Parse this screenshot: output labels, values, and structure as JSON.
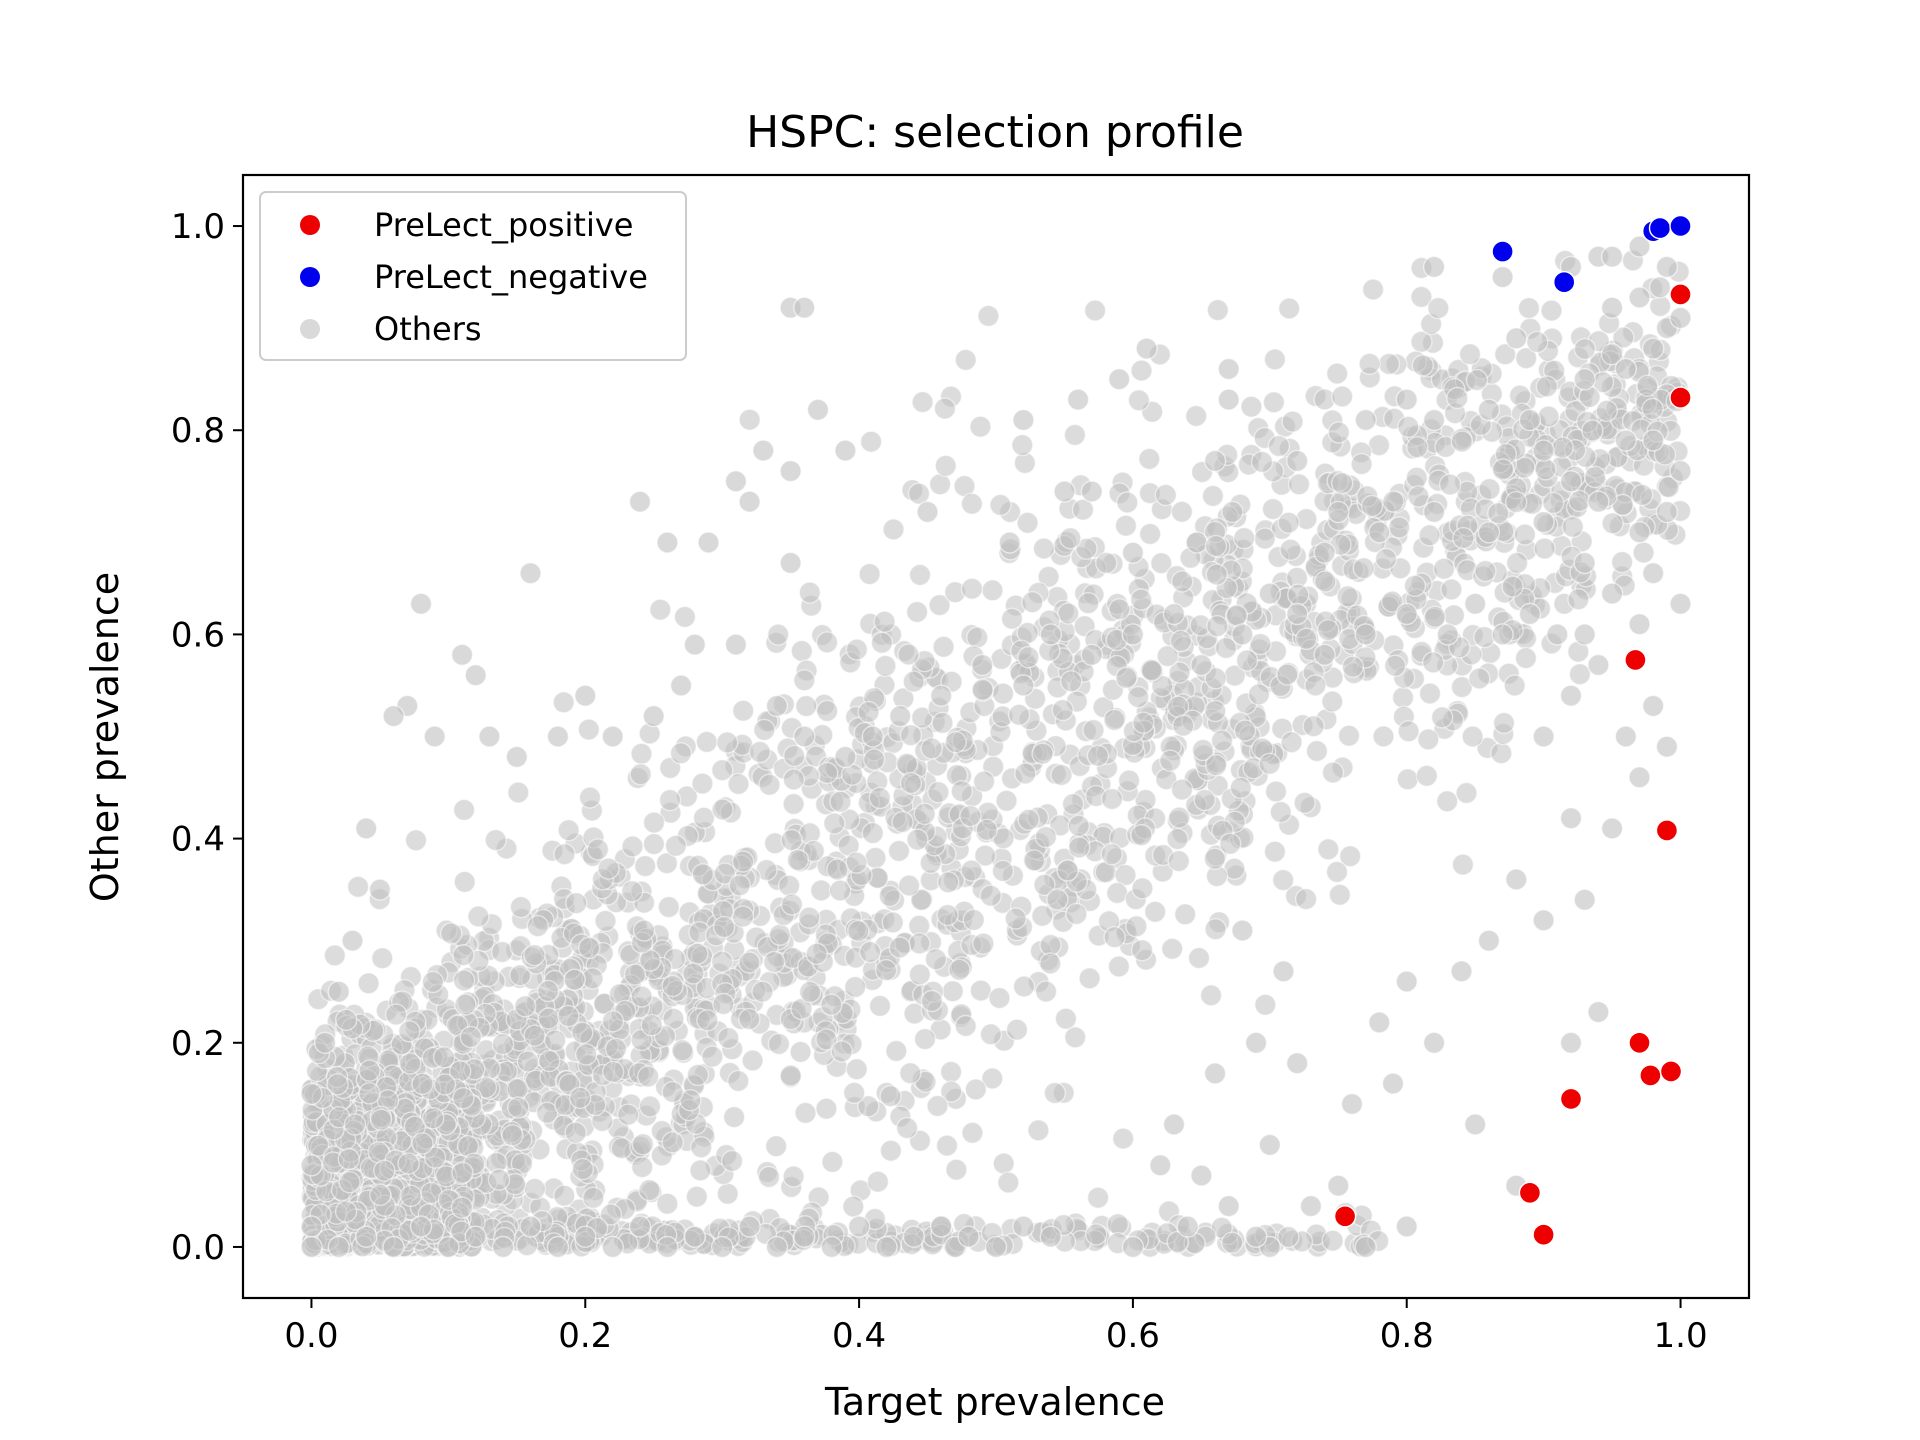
{
  "chart_data": {
    "type": "scatter",
    "title": "HSPC: selection profile",
    "xlabel": "Target prevalence",
    "ylabel": "Other prevalence",
    "xlim": [
      -0.05,
      1.05
    ],
    "ylim": [
      -0.05,
      1.05
    ],
    "xticks": [
      "0.0",
      "0.2",
      "0.4",
      "0.6",
      "0.8",
      "1.0"
    ],
    "yticks": [
      "0.0",
      "0.2",
      "0.4",
      "0.6",
      "0.8",
      "1.0"
    ],
    "grid": false,
    "legend": {
      "placement": "top-left",
      "entries": [
        "PreLect_positive",
        "PreLect_negative",
        "Others"
      ]
    },
    "series": [
      {
        "name": "Others",
        "color": "#c0c0c0",
        "note_points_approximate": true,
        "distribution_points": [
          [
            0.94,
            0.97
          ],
          [
            0.97,
            0.98
          ],
          [
            0.82,
            0.96
          ],
          [
            0.87,
            0.95
          ],
          [
            0.92,
            0.96
          ],
          [
            0.95,
            0.97
          ],
          [
            0.99,
            0.96
          ],
          [
            0.985,
            0.94
          ],
          [
            0.35,
            0.92
          ],
          [
            0.36,
            0.92
          ],
          [
            0.61,
            0.88
          ],
          [
            0.56,
            0.83
          ],
          [
            0.59,
            0.85
          ],
          [
            0.67,
            0.86
          ],
          [
            0.37,
            0.82
          ],
          [
            0.52,
            0.81
          ],
          [
            0.31,
            0.75
          ],
          [
            0.33,
            0.78
          ],
          [
            0.35,
            0.76
          ],
          [
            0.39,
            0.78
          ],
          [
            0.32,
            0.73
          ],
          [
            0.24,
            0.73
          ],
          [
            0.26,
            0.69
          ],
          [
            0.29,
            0.69
          ],
          [
            0.35,
            0.67
          ],
          [
            0.16,
            0.66
          ],
          [
            0.08,
            0.63
          ],
          [
            0.45,
            0.72
          ],
          [
            0.55,
            0.74
          ],
          [
            0.57,
            0.74
          ],
          [
            0.51,
            0.69
          ],
          [
            0.6,
            0.68
          ],
          [
            0.66,
            0.77
          ],
          [
            0.67,
            0.83
          ],
          [
            0.72,
            0.77
          ],
          [
            0.8,
            0.83
          ],
          [
            0.77,
            0.81
          ],
          [
            0.82,
            0.81
          ],
          [
            0.86,
            0.82
          ],
          [
            0.89,
            0.81
          ],
          [
            0.88,
            0.89
          ],
          [
            0.93,
            0.85
          ],
          [
            0.96,
            0.86
          ],
          [
            0.98,
            0.88
          ],
          [
            0.99,
            0.9
          ],
          [
            0.97,
            0.93
          ],
          [
            0.95,
            0.92
          ],
          [
            1.0,
            0.91
          ],
          [
            0.9,
            0.78
          ],
          [
            0.92,
            0.75
          ],
          [
            0.94,
            0.73
          ],
          [
            0.96,
            0.79
          ],
          [
            0.98,
            0.79
          ],
          [
            1.0,
            0.76
          ],
          [
            0.97,
            0.7
          ],
          [
            0.99,
            0.72
          ],
          [
            0.75,
            0.72
          ],
          [
            0.74,
            0.68
          ],
          [
            0.78,
            0.7
          ],
          [
            0.82,
            0.72
          ],
          [
            0.86,
            0.7
          ],
          [
            0.9,
            0.71
          ],
          [
            0.93,
            0.67
          ],
          [
            0.95,
            0.64
          ],
          [
            0.98,
            0.66
          ],
          [
            1.0,
            0.63
          ],
          [
            0.97,
            0.61
          ],
          [
            0.94,
            0.57
          ],
          [
            0.92,
            0.54
          ],
          [
            0.9,
            0.5
          ],
          [
            0.96,
            0.5
          ],
          [
            0.99,
            0.49
          ],
          [
            0.92,
            0.42
          ],
          [
            0.95,
            0.41
          ],
          [
            0.93,
            0.34
          ],
          [
            0.9,
            0.32
          ],
          [
            0.94,
            0.23
          ],
          [
            0.92,
            0.2
          ],
          [
            0.88,
            0.06
          ],
          [
            0.85,
            0.12
          ],
          [
            0.98,
            0.53
          ],
          [
            0.97,
            0.46
          ],
          [
            0.88,
            0.36
          ],
          [
            0.86,
            0.3
          ],
          [
            0.84,
            0.27
          ],
          [
            0.8,
            0.26
          ],
          [
            0.78,
            0.22
          ],
          [
            0.82,
            0.2
          ],
          [
            0.79,
            0.16
          ],
          [
            0.76,
            0.14
          ],
          [
            0.72,
            0.18
          ],
          [
            0.7,
            0.1
          ],
          [
            0.75,
            0.06
          ],
          [
            0.73,
            0.04
          ],
          [
            0.8,
            0.02
          ],
          [
            0.77,
            0.0
          ],
          [
            0.7,
            0.0
          ],
          [
            0.69,
            0.01
          ],
          [
            0.64,
            0.02
          ],
          [
            0.6,
            0.0
          ],
          [
            0.54,
            0.01
          ],
          [
            0.5,
            0.0
          ],
          [
            0.47,
            0.0
          ],
          [
            0.44,
            0.01
          ],
          [
            0.62,
            0.08
          ],
          [
            0.65,
            0.07
          ],
          [
            0.67,
            0.04
          ],
          [
            0.63,
            0.12
          ],
          [
            0.66,
            0.17
          ],
          [
            0.69,
            0.2
          ],
          [
            0.71,
            0.27
          ],
          [
            0.68,
            0.31
          ],
          [
            0.57,
            0.58
          ],
          [
            0.6,
            0.6
          ],
          [
            0.63,
            0.62
          ],
          [
            0.65,
            0.57
          ],
          [
            0.68,
            0.6
          ],
          [
            0.7,
            0.64
          ],
          [
            0.72,
            0.62
          ],
          [
            0.74,
            0.58
          ],
          [
            0.77,
            0.6
          ],
          [
            0.8,
            0.62
          ],
          [
            0.83,
            0.6
          ],
          [
            0.85,
            0.63
          ],
          [
            0.87,
            0.6
          ],
          [
            0.89,
            0.62
          ],
          [
            0.91,
            0.6
          ],
          [
            0.93,
            0.6
          ],
          [
            0.49,
            0.57
          ],
          [
            0.52,
            0.55
          ],
          [
            0.54,
            0.6
          ],
          [
            0.46,
            0.54
          ],
          [
            0.43,
            0.52
          ],
          [
            0.41,
            0.5
          ],
          [
            0.39,
            0.48
          ],
          [
            0.36,
            0.5
          ],
          [
            0.34,
            0.53
          ],
          [
            0.31,
            0.59
          ],
          [
            0.28,
            0.59
          ],
          [
            0.27,
            0.55
          ],
          [
            0.25,
            0.52
          ],
          [
            0.22,
            0.5
          ],
          [
            0.2,
            0.54
          ],
          [
            0.18,
            0.5
          ],
          [
            0.15,
            0.48
          ],
          [
            0.13,
            0.5
          ],
          [
            0.11,
            0.58
          ],
          [
            0.12,
            0.56
          ],
          [
            0.07,
            0.53
          ],
          [
            0.06,
            0.52
          ],
          [
            0.09,
            0.5
          ],
          [
            0.04,
            0.41
          ],
          [
            0.05,
            0.35
          ],
          [
            0.03,
            0.3
          ],
          [
            0.02,
            0.25
          ],
          [
            0.01,
            0.2
          ],
          [
            0.0,
            0.15
          ],
          [
            0.0,
            0.08
          ],
          [
            0.0,
            0.02
          ],
          [
            0.0,
            0.0
          ],
          [
            0.02,
            0.0
          ],
          [
            0.04,
            0.01
          ],
          [
            0.06,
            0.0
          ],
          [
            0.08,
            0.02
          ],
          [
            0.1,
            0.0
          ],
          [
            0.12,
            0.01
          ],
          [
            0.14,
            0.0
          ],
          [
            0.16,
            0.02
          ],
          [
            0.18,
            0.0
          ],
          [
            0.2,
            0.01
          ],
          [
            0.22,
            0.0
          ],
          [
            0.24,
            0.02
          ],
          [
            0.26,
            0.0
          ],
          [
            0.28,
            0.01
          ],
          [
            0.3,
            0.0
          ],
          [
            0.32,
            0.02
          ],
          [
            0.34,
            0.0
          ],
          [
            0.36,
            0.01
          ],
          [
            0.38,
            0.0
          ],
          [
            0.4,
            0.02
          ],
          [
            0.42,
            0.0
          ],
          [
            0.46,
            0.02
          ],
          [
            0.48,
            0.01
          ],
          [
            0.52,
            0.02
          ]
        ],
        "dense_region": "points form a dense band rising from (0.0, 0.0–0.2) to (1.0, 0.8–1.0), broadest near x=0.3–0.7"
      },
      {
        "name": "PreLect_negative",
        "color": "#0000ee",
        "points": [
          [
            0.87,
            0.975
          ],
          [
            0.915,
            0.945
          ],
          [
            0.98,
            0.995
          ],
          [
            0.985,
            0.998
          ],
          [
            1.0,
            1.0
          ]
        ]
      },
      {
        "name": "PreLect_positive",
        "color": "#ee0000",
        "points": [
          [
            1.0,
            0.933
          ],
          [
            1.0,
            0.832
          ],
          [
            0.967,
            0.575
          ],
          [
            0.99,
            0.408
          ],
          [
            0.97,
            0.2
          ],
          [
            0.978,
            0.168
          ],
          [
            0.993,
            0.172
          ],
          [
            0.92,
            0.145
          ],
          [
            0.89,
            0.053
          ],
          [
            0.9,
            0.012
          ],
          [
            0.755,
            0.03
          ]
        ]
      }
    ]
  }
}
